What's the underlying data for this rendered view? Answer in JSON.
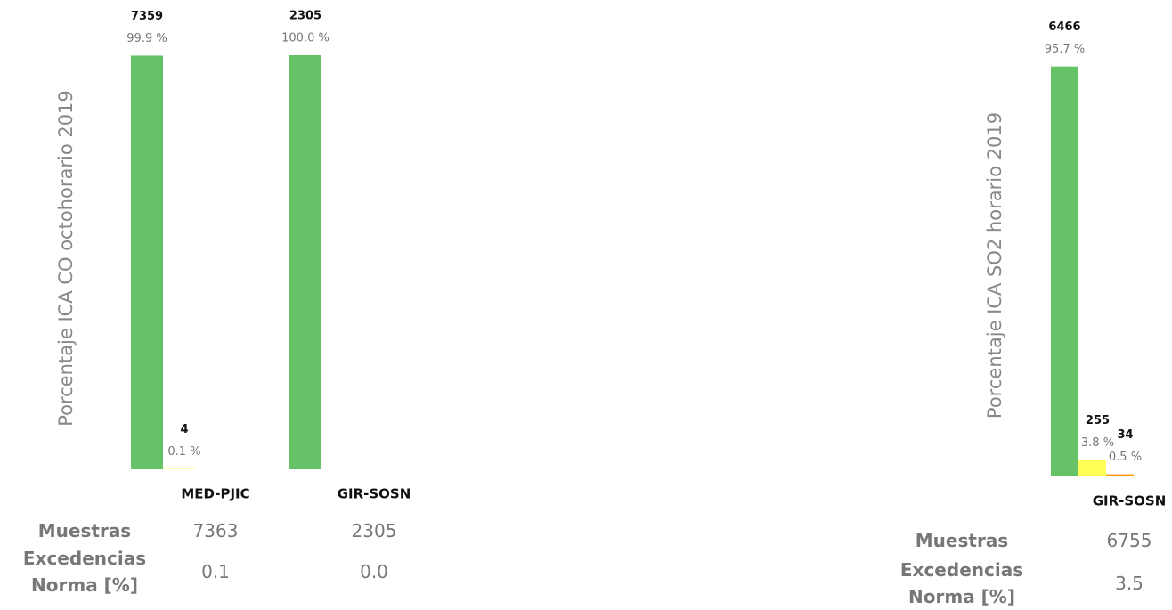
{
  "chart_data": [
    {
      "type": "bar",
      "y_label": "Porcentaje ICA CO octohorario 2019",
      "categories": [
        "MED-PJIC",
        "GIR-SOSN"
      ],
      "series": [
        {
          "color": "#66c266",
          "values": [
            99.9,
            100
          ],
          "value_labels": [
            "99.9 %",
            "100.0 %"
          ],
          "counts": [
            7359,
            2305
          ]
        },
        {
          "color": "#ffff55",
          "values": [
            0.1,
            null
          ],
          "value_labels": [
            "0.1 %",
            null
          ],
          "counts": [
            4,
            null
          ]
        }
      ],
      "table": {
        "row_labels": [
          "Muestras",
          "Excedencias Norma [%]"
        ],
        "rows": [
          [
            7363,
            2305
          ],
          [
            0.1,
            {
              "value": 0,
              "label": "0.0"
            }
          ]
        ]
      }
    },
    {
      "type": "bar",
      "y_label": "Porcentaje ICA SO2 horario 2019",
      "categories": [
        "GIR-SOSN"
      ],
      "series": [
        {
          "color": "#66c266",
          "values": [
            95.7
          ],
          "value_labels": [
            "95.7 %"
          ],
          "counts": [
            6466
          ]
        },
        {
          "color": "#ffff55",
          "values": [
            3.8
          ],
          "value_labels": [
            "3.8 %"
          ],
          "counts": [
            255
          ]
        },
        {
          "color": "#ff9900",
          "values": [
            0.5
          ],
          "value_labels": [
            "0.5 %"
          ],
          "counts": [
            34
          ]
        }
      ],
      "table": {
        "row_labels": [
          "Muestras",
          "Excedencias Norma [%]"
        ],
        "rows": [
          [
            6755
          ],
          [
            3.5
          ]
        ]
      }
    }
  ]
}
